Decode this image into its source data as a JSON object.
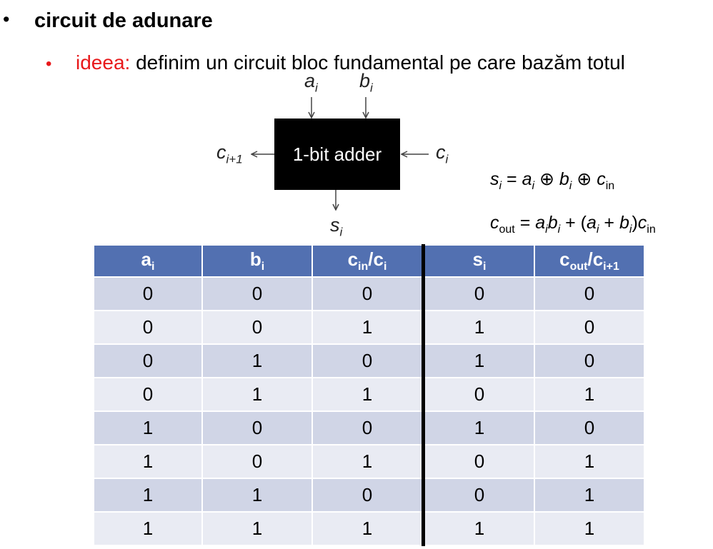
{
  "heading": {
    "bullet": "•",
    "title": "circuit de adunare"
  },
  "idea": {
    "bullet": "•",
    "label": "ideea:",
    "text": " definim un circuit bloc fundamental pe care bazăm totul"
  },
  "diagram": {
    "box_label": "1-bit adder",
    "inputs": {
      "a": "a",
      "a_sub": "i",
      "b": "b",
      "b_sub": "i",
      "c": "c",
      "c_sub": "i"
    },
    "outputs": {
      "carry": "c",
      "carry_sub": "i+1",
      "sum": "s",
      "sum_sub": "i"
    }
  },
  "formulas": {
    "sum": {
      "lhs": "s",
      "lhs_sub": "i",
      "rhs": " = a_i ⊕ b_i ⊕ c_in"
    },
    "carry": {
      "lhs": "c",
      "lhs_sub": "out",
      "rhs": " = a_i b_i + (a_i + b_i)c_in"
    }
  },
  "table": {
    "headers": [
      {
        "main": "a",
        "sub": "i",
        "rest": "",
        "rest_sub": ""
      },
      {
        "main": "b",
        "sub": "i",
        "rest": "",
        "rest_sub": ""
      },
      {
        "main": "c",
        "sub": "in",
        "rest": "/c",
        "rest_sub": "i"
      },
      {
        "main": "s",
        "sub": "i",
        "rest": "",
        "rest_sub": ""
      },
      {
        "main": "c",
        "sub": "out",
        "rest": "/c",
        "rest_sub": "i+1"
      }
    ],
    "rows": [
      [
        "0",
        "0",
        "0",
        "0",
        "0"
      ],
      [
        "0",
        "0",
        "1",
        "1",
        "0"
      ],
      [
        "0",
        "1",
        "0",
        "1",
        "0"
      ],
      [
        "0",
        "1",
        "1",
        "0",
        "1"
      ],
      [
        "1",
        "0",
        "0",
        "1",
        "0"
      ],
      [
        "1",
        "0",
        "1",
        "0",
        "1"
      ],
      [
        "1",
        "1",
        "0",
        "0",
        "1"
      ],
      [
        "1",
        "1",
        "1",
        "1",
        "1"
      ]
    ]
  }
}
